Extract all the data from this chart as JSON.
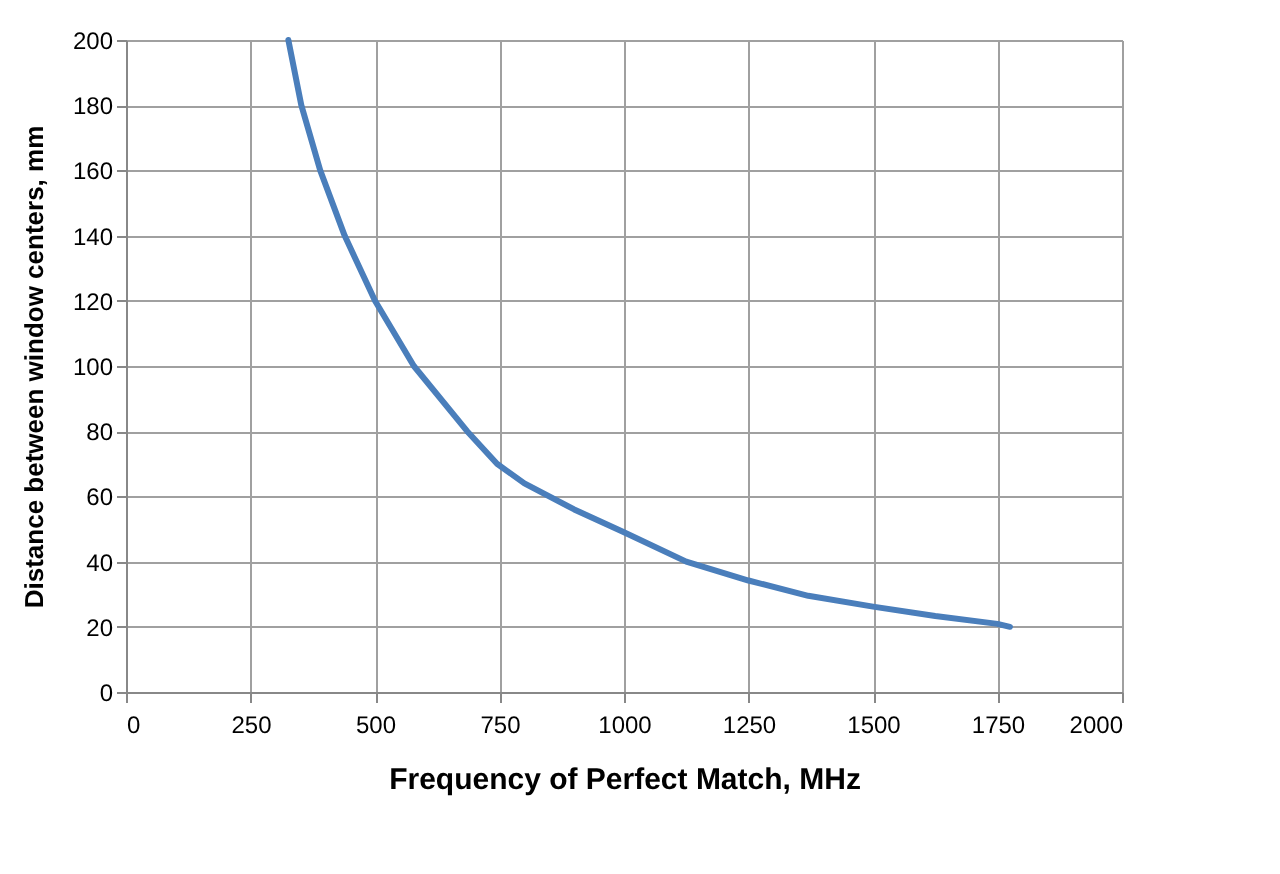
{
  "chart_data": {
    "type": "line",
    "xlabel": "Frequency of Perfect Match, MHz",
    "ylabel": "Distance between window centers, mm",
    "series": [
      {
        "color": "#4a7ebb",
        "x": [
          326,
          352,
          390,
          439,
          500,
          578,
          685,
          745,
          800,
          900,
          1000,
          1125,
          1250,
          1370,
          1500,
          1625,
          1750,
          1775
        ],
        "values": [
          200,
          180,
          160,
          140,
          120,
          100,
          80,
          70,
          64,
          56,
          49,
          40,
          34.2,
          29.5,
          26.2,
          23.3,
          20.9,
          20
        ]
      }
    ],
    "xlim": [
      0,
      2000
    ],
    "xticks": [
      0,
      250,
      500,
      750,
      1000,
      1250,
      1500,
      1750,
      2000
    ],
    "ylim": [
      0,
      200
    ],
    "yticks": [
      0,
      20,
      40,
      60,
      80,
      100,
      120,
      140,
      160,
      180,
      200
    ],
    "grid": true,
    "legend": false,
    "marker": "none",
    "line_style": "solid"
  }
}
